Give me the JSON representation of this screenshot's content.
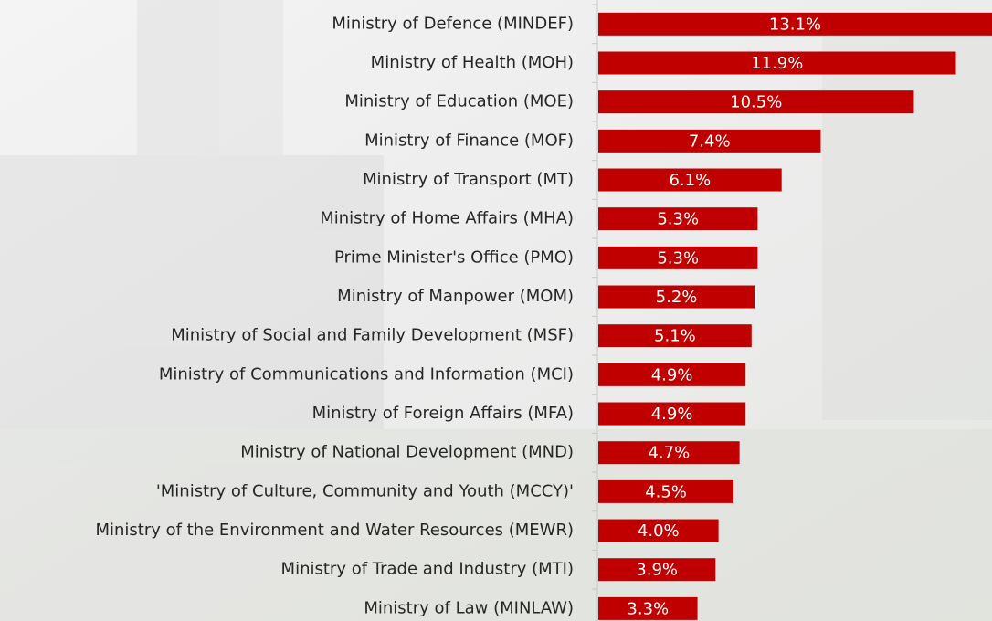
{
  "chart_data": {
    "type": "bar",
    "orientation": "horizontal",
    "color": "#c00000",
    "categories": [
      "Ministry of Defence (MINDEF)",
      "Ministry of Health (MOH)",
      "Ministry of Education (MOE)",
      "Ministry of Finance (MOF)",
      "Ministry of Transport (MT)",
      "Ministry of Home Affairs (MHA)",
      "Prime Minister's Office (PMO)",
      "Ministry of Manpower (MOM)",
      "Ministry of Social and Family Development (MSF)",
      "Ministry of Communications and Information (MCI)",
      "Ministry of Foreign Affairs (MFA)",
      "Ministry of National Development (MND)",
      "'Ministry of Culture, Community and Youth (MCCY)'",
      "Ministry of the Environment and Water Resources (MEWR)",
      "Ministry of Trade and Industry (MTI)",
      "Ministry of Law (MINLAW)"
    ],
    "values": [
      13.1,
      11.9,
      10.5,
      7.4,
      6.1,
      5.3,
      5.3,
      5.2,
      5.1,
      4.9,
      4.9,
      4.7,
      4.5,
      4.0,
      3.9,
      3.3
    ],
    "value_labels": [
      "13.1%",
      "11.9%",
      "10.5%",
      "7.4%",
      "6.1%",
      "5.3%",
      "5.3%",
      "5.2%",
      "5.1%",
      "4.9%",
      "4.9%",
      "4.7%",
      "4.5%",
      "4.0%",
      "3.9%",
      "3.3%"
    ]
  }
}
